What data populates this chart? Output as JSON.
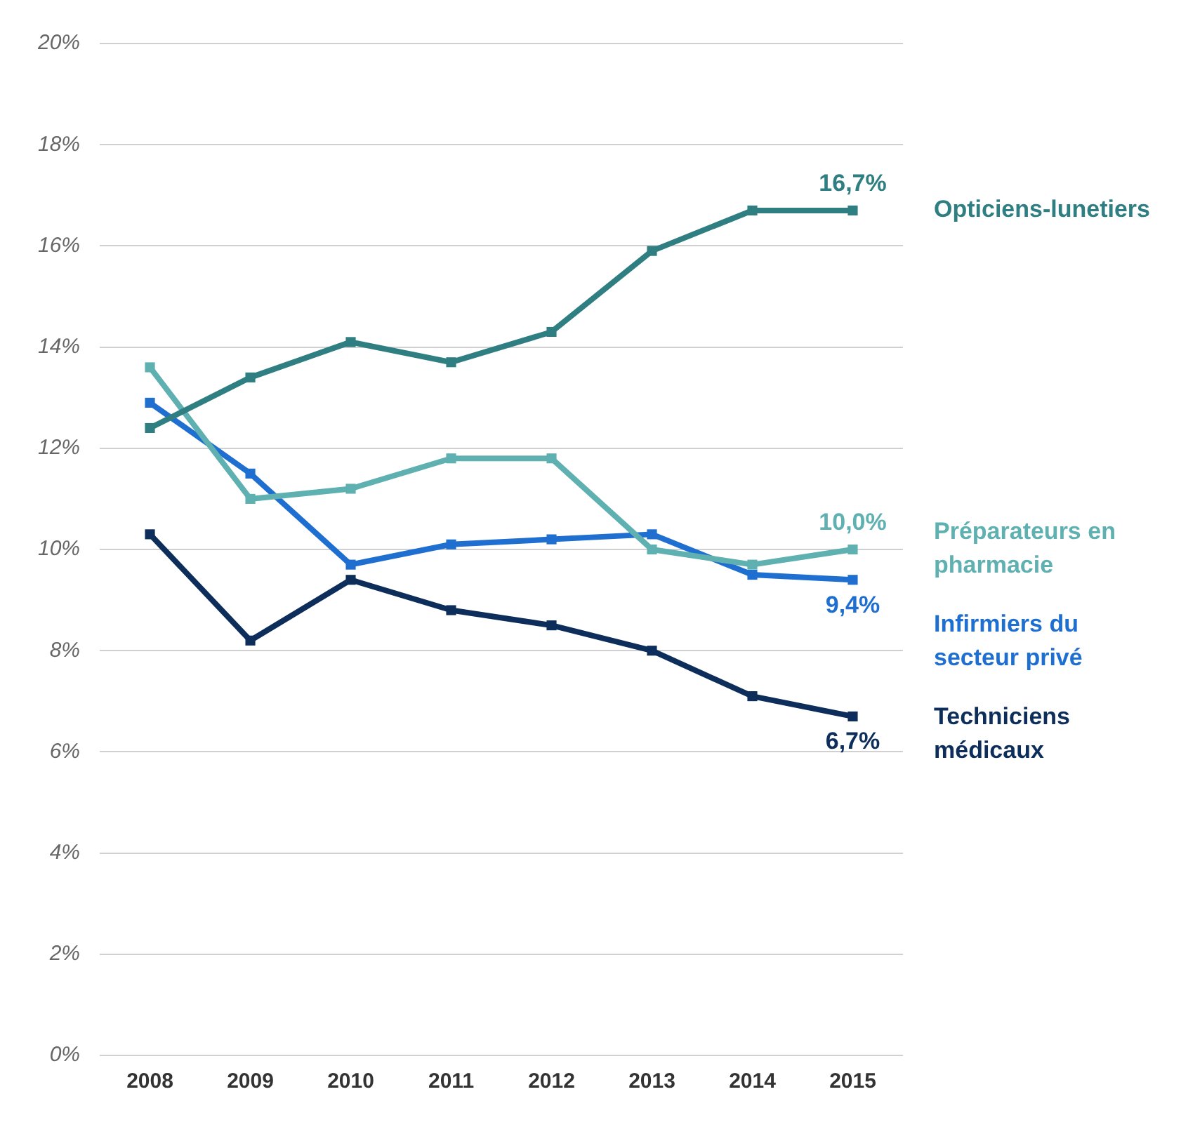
{
  "chart_data": {
    "type": "line",
    "categories": [
      "2008",
      "2009",
      "2010",
      "2011",
      "2012",
      "2013",
      "2014",
      "2015"
    ],
    "series": [
      {
        "name": "Opticiens-lunetiers",
        "color": "#2f7f82",
        "values": [
          12.4,
          13.4,
          14.1,
          13.7,
          14.3,
          15.9,
          16.7,
          16.7
        ],
        "value_labels": [
          null,
          null,
          null,
          null,
          null,
          null,
          null,
          "16,7%"
        ]
      },
      {
        "name": "Préparateurs en pharmacie",
        "color": "#5fb0b0",
        "values": [
          13.6,
          11.0,
          11.2,
          11.8,
          11.8,
          10.0,
          9.7,
          10.0
        ],
        "value_labels": [
          null,
          null,
          null,
          null,
          null,
          null,
          null,
          "10,0%"
        ]
      },
      {
        "name": "Infirmiers du secteur privé",
        "color": "#1f6fd0",
        "values": [
          12.9,
          11.5,
          9.7,
          10.1,
          10.2,
          10.3,
          9.5,
          9.4
        ],
        "value_labels": [
          null,
          null,
          null,
          null,
          null,
          null,
          null,
          "9,4%"
        ]
      },
      {
        "name": "Techniciens médicaux",
        "color": "#0d2d5a",
        "values": [
          10.3,
          8.2,
          9.4,
          8.8,
          8.5,
          8.0,
          7.1,
          6.7
        ],
        "value_labels": [
          null,
          null,
          null,
          null,
          null,
          null,
          null,
          "6,7%"
        ]
      }
    ],
    "ylim": [
      0,
      20
    ],
    "yticks": [
      {
        "value": 0,
        "label": "0%"
      },
      {
        "value": 2,
        "label": "2%"
      },
      {
        "value": 4,
        "label": "4%"
      },
      {
        "value": 6,
        "label": "6%"
      },
      {
        "value": 8,
        "label": "8%"
      },
      {
        "value": 10,
        "label": "10%"
      },
      {
        "value": 12,
        "label": "12%"
      },
      {
        "value": 14,
        "label": "14%"
      },
      {
        "value": 16,
        "label": "16%"
      },
      {
        "value": 18,
        "label": "18%"
      },
      {
        "value": 20,
        "label": "20%"
      }
    ],
    "grid": "y",
    "marker": "square",
    "line_style": "solid",
    "legend": false
  }
}
